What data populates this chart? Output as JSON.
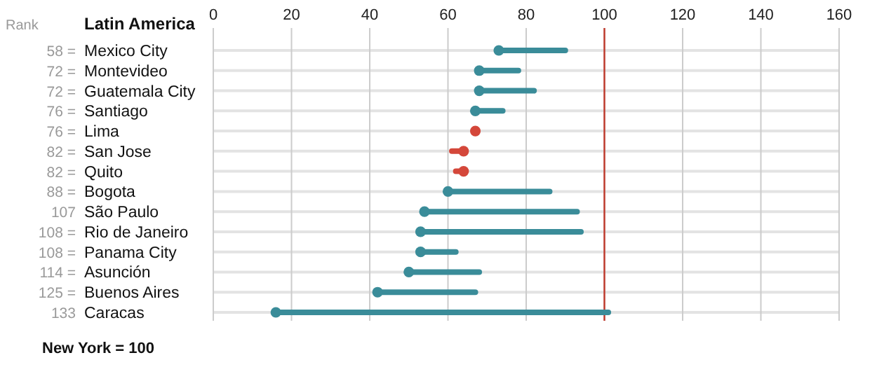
{
  "chart_data": {
    "type": "bar",
    "orientation": "horizontal",
    "ylabel": "Latin America",
    "categories": [
      "Mexico City",
      "Montevideo",
      "Guatemala City",
      "Santiago",
      "Lima",
      "San Jose",
      "Quito",
      "Bogota",
      "São Paulo",
      "Rio de Janeiro",
      "Panama City",
      "Asunción",
      "Buenos Aires",
      "Caracas"
    ],
    "series": [
      {
        "base": [
          73,
          68,
          68,
          67,
          null,
          64,
          64,
          60,
          54,
          53,
          53,
          50,
          42,
          16
        ],
        "values": [
          17,
          10,
          14,
          7,
          null,
          -3,
          -2,
          26,
          39,
          41,
          9,
          18,
          25,
          85
        ],
        "colors": [
          "#3a8c99",
          "#3a8c99",
          "#3a8c99",
          "#3a8c99",
          null,
          "#d4473a",
          "#d4473a",
          "#3a8c99",
          "#3a8c99",
          "#3a8c99",
          "#3a8c99",
          "#3a8c99",
          "#3a8c99",
          "#3a8c99"
        ]
      },
      {
        "type": "scatter",
        "values": [
          73,
          68,
          68,
          67,
          67,
          64,
          64,
          60,
          54,
          53,
          53,
          50,
          42,
          16
        ],
        "colors": [
          "#3a8c99",
          "#3a8c99",
          "#3a8c99",
          "#3a8c99",
          "#d4473a",
          "#d4473a",
          "#d4473a",
          "#3a8c99",
          "#3a8c99",
          "#3a8c99",
          "#3a8c99",
          "#3a8c99",
          "#3a8c99",
          "#3a8c99"
        ]
      }
    ],
    "xlim": [
      0,
      160
    ],
    "xticks": [
      0,
      20,
      40,
      60,
      80,
      100,
      120,
      140,
      160
    ],
    "grid": true,
    "marker": "circle",
    "ref_lines": [
      {
        "axis": "x",
        "value": 100,
        "color": "#c0392b"
      }
    ],
    "annotations": [
      "Rank",
      "New York = 100",
      "58 =",
      "72 =",
      "72 =",
      "76 =",
      "76 =",
      "82 =",
      "82 =",
      "88 =",
      "107",
      "108 =",
      "108 =",
      "114 =",
      "125 =",
      "133"
    ]
  }
}
